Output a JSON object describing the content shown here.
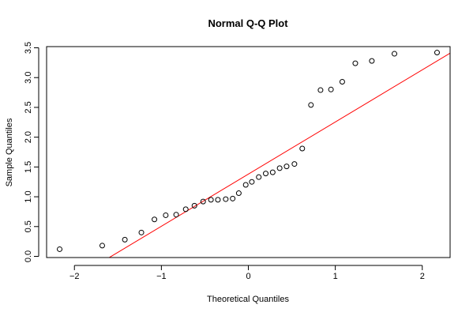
{
  "chart_data": {
    "type": "scatter",
    "title": "Normal Q-Q Plot",
    "xlabel": "Theoretical Quantiles",
    "ylabel": "Sample Quantiles",
    "xlim": [
      -2.32,
      2.32
    ],
    "ylim": [
      -0.02,
      3.52
    ],
    "x_ticks": [
      -2,
      -1,
      0,
      1,
      2
    ],
    "x_tick_labels": [
      "−2",
      "−1",
      "0",
      "1",
      "2"
    ],
    "y_ticks": [
      0.0,
      0.5,
      1.0,
      1.5,
      2.0,
      2.5,
      3.0,
      3.5
    ],
    "y_tick_labels": [
      "0.0",
      "0.5",
      "1.0",
      "1.5",
      "2.0",
      "2.5",
      "3.0",
      "3.5"
    ],
    "grid": false,
    "point_style": "open-circle",
    "point_color": "#000000",
    "reference_line": {
      "intercept": 1.38,
      "slope": 0.875,
      "color": "#ff0000"
    },
    "points": [
      {
        "x": -2.17,
        "y": 0.12
      },
      {
        "x": -1.68,
        "y": 0.18
      },
      {
        "x": -1.42,
        "y": 0.28
      },
      {
        "x": -1.23,
        "y": 0.4
      },
      {
        "x": -1.08,
        "y": 0.62
      },
      {
        "x": -0.95,
        "y": 0.69
      },
      {
        "x": -0.83,
        "y": 0.7
      },
      {
        "x": -0.72,
        "y": 0.79
      },
      {
        "x": -0.62,
        "y": 0.85
      },
      {
        "x": -0.52,
        "y": 0.92
      },
      {
        "x": -0.43,
        "y": 0.95
      },
      {
        "x": -0.35,
        "y": 0.95
      },
      {
        "x": -0.26,
        "y": 0.96
      },
      {
        "x": -0.18,
        "y": 0.97
      },
      {
        "x": -0.11,
        "y": 1.06
      },
      {
        "x": -0.03,
        "y": 1.2
      },
      {
        "x": 0.04,
        "y": 1.25
      },
      {
        "x": 0.12,
        "y": 1.33
      },
      {
        "x": 0.2,
        "y": 1.39
      },
      {
        "x": 0.28,
        "y": 1.41
      },
      {
        "x": 0.36,
        "y": 1.48
      },
      {
        "x": 0.44,
        "y": 1.51
      },
      {
        "x": 0.53,
        "y": 1.55
      },
      {
        "x": 0.62,
        "y": 1.81
      },
      {
        "x": 0.72,
        "y": 2.54
      },
      {
        "x": 0.83,
        "y": 2.79
      },
      {
        "x": 0.95,
        "y": 2.8
      },
      {
        "x": 1.08,
        "y": 2.93
      },
      {
        "x": 1.23,
        "y": 3.24
      },
      {
        "x": 1.42,
        "y": 3.28
      },
      {
        "x": 1.68,
        "y": 3.4
      },
      {
        "x": 2.17,
        "y": 3.42
      }
    ]
  }
}
